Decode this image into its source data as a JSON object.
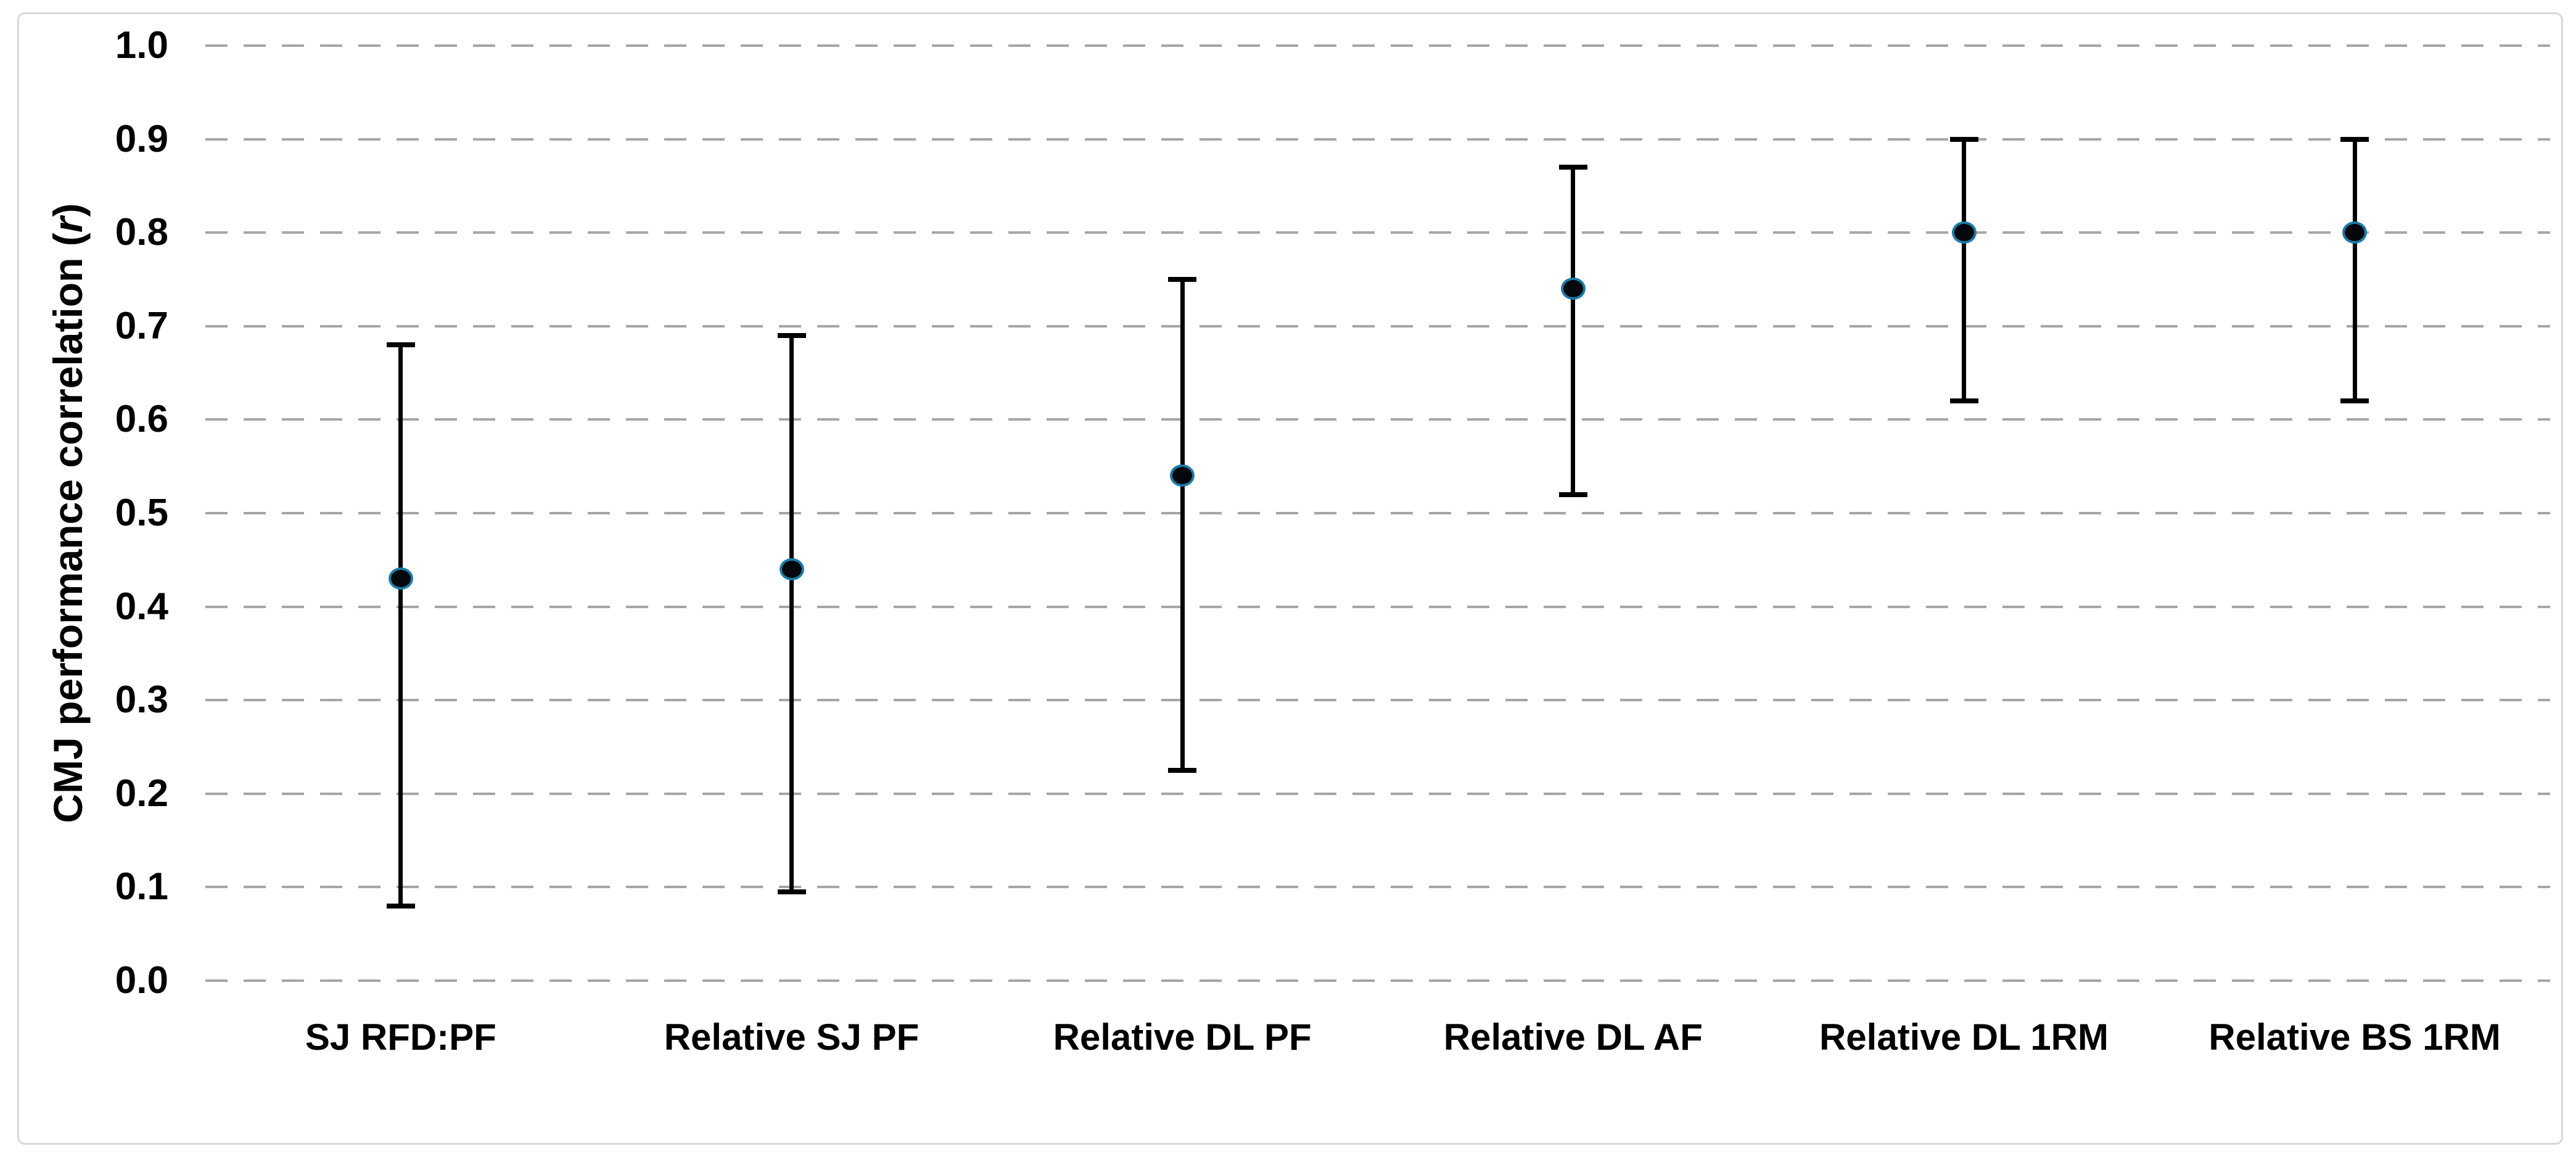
{
  "chart_data": {
    "type": "scatter",
    "subtype": "point-estimates-with-error-bars",
    "title": "",
    "xlabel": "",
    "ylabel_prefix": "CMJ performance correlation (",
    "ylabel_italic": "r",
    "ylabel_suffix": ")",
    "categories": [
      "SJ RFD:PF",
      "Relative SJ PF",
      "Relative DL PF",
      "Relative DL AF",
      "Relative DL 1RM",
      "Relative BS 1RM"
    ],
    "series": [
      {
        "r_values": [
          0.43,
          0.44,
          0.54,
          0.74,
          0.8,
          0.8
        ],
        "ci_lower": [
          0.08,
          0.095,
          0.225,
          0.52,
          0.62,
          0.62
        ],
        "ci_upper": [
          0.68,
          0.69,
          0.75,
          0.87,
          0.9,
          0.9
        ]
      }
    ],
    "yticks": [
      0.0,
      0.1,
      0.2,
      0.3,
      0.4,
      0.5,
      0.6,
      0.7,
      0.8,
      0.9,
      1.0
    ],
    "ytick_labels": [
      "0.0",
      "0.1",
      "0.2",
      "0.3",
      "0.4",
      "0.5",
      "0.6",
      "0.7",
      "0.8",
      "0.9",
      "1.0"
    ],
    "ylim": [
      0.0,
      1.0
    ],
    "grid": "horizontal-dashed",
    "legend": "none",
    "colors": {
      "marker_fill": "#04070b",
      "marker_ring": "#1b7ca8",
      "error_bar": "#000000",
      "gridline": "#a6a6a6",
      "chart_border": "#d9d9d9",
      "background": "#ffffff",
      "text": "#000000"
    }
  }
}
